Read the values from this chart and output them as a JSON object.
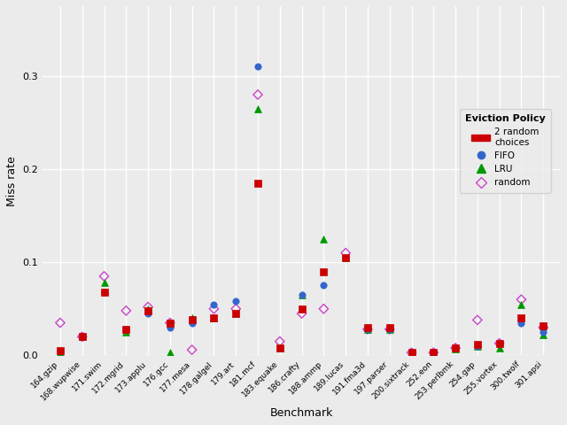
{
  "xlabel": "Benchmark",
  "ylabel": "Miss rate",
  "benchmarks": [
    "164.gzip",
    "168.wupwise",
    "171.swim",
    "172.mgrid",
    "173.applu",
    "176.gcc",
    "177.mesa",
    "178.galgel",
    "179.art",
    "181.mcf",
    "183.equake",
    "186.crafty",
    "188.ammp",
    "189.lucas",
    "191.fma3d",
    "197.parser",
    "200.sixtrack",
    "252.eon",
    "253.perlbmk",
    "254.gap",
    "255.vortex",
    "300.twolf",
    "301.apsi"
  ],
  "two_random": [
    0.005,
    0.02,
    0.068,
    0.028,
    0.048,
    0.035,
    0.038,
    0.04,
    0.045,
    0.185,
    0.008,
    0.05,
    0.09,
    0.105,
    0.03,
    0.03,
    0.003,
    0.003,
    0.008,
    0.012,
    0.013,
    0.04,
    0.032
  ],
  "fifo": [
    0.005,
    0.02,
    0.068,
    0.028,
    0.045,
    0.03,
    0.035,
    0.055,
    0.058,
    0.31,
    0.008,
    0.065,
    0.075,
    0.105,
    0.028,
    0.028,
    0.003,
    0.003,
    0.008,
    0.01,
    0.013,
    0.035,
    0.025
  ],
  "lru": [
    0.003,
    0.02,
    0.078,
    0.025,
    0.05,
    0.003,
    0.04,
    0.04,
    0.045,
    0.265,
    0.008,
    0.065,
    0.125,
    0.105,
    0.028,
    0.028,
    0.003,
    0.003,
    0.007,
    0.01,
    0.008,
    0.055,
    0.022
  ],
  "random": [
    0.035,
    0.02,
    0.085,
    0.048,
    0.052,
    0.035,
    0.006,
    0.05,
    0.05,
    0.28,
    0.015,
    0.045,
    0.05,
    0.11,
    0.028,
    0.028,
    0.003,
    0.003,
    0.008,
    0.038,
    0.013,
    0.06,
    0.03
  ],
  "colors": {
    "two_random": "#cc0000",
    "fifo": "#3366cc",
    "lru": "#009900",
    "random": "#cc44cc"
  },
  "ylim": [
    0.0,
    0.375
  ],
  "yticks": [
    0.0,
    0.1,
    0.2,
    0.3
  ],
  "ytick_labels": [
    "0.0",
    "0.1",
    "0.2",
    "0.3"
  ],
  "bg_color": "#ebebeb",
  "grid_color": "#ffffff",
  "legend_title": "Eviction Policy",
  "legend_label_two_random": "2 random\nchoices",
  "legend_label_fifo": "FIFO",
  "legend_label_lru": "LRU",
  "legend_label_random": "random"
}
